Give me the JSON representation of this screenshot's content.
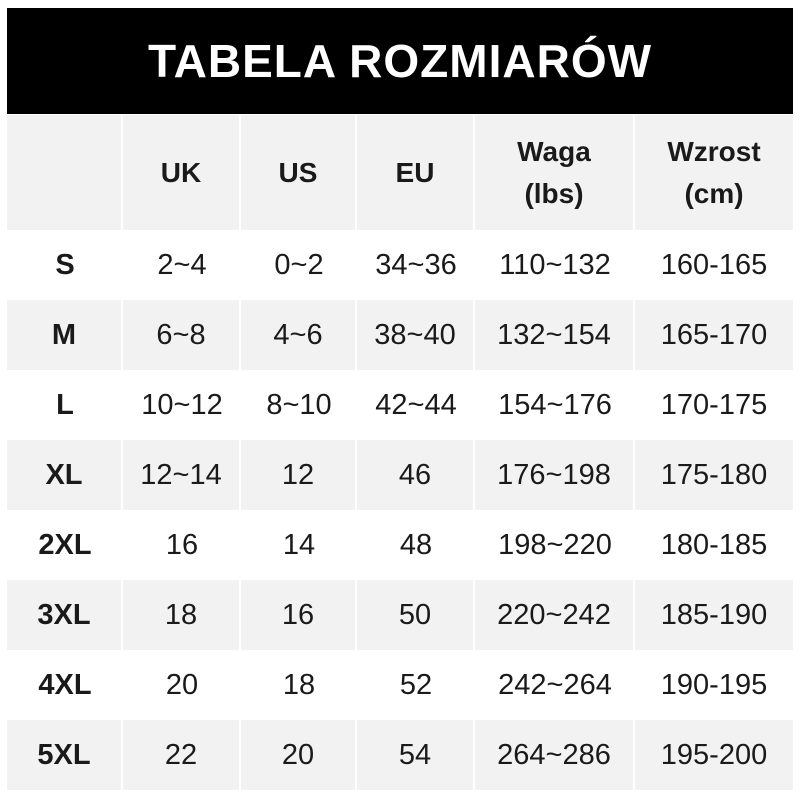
{
  "title": "TABELA ROZMIARÓW",
  "headers": [
    "",
    "UK",
    "US",
    "EU",
    "Waga\n(lbs)",
    "Wzrost\n(cm)"
  ],
  "rows": [
    [
      "S",
      "2~4",
      "0~2",
      "34~36",
      "110~132",
      "160-165"
    ],
    [
      "M",
      "6~8",
      "4~6",
      "38~40",
      "132~154",
      "165-170"
    ],
    [
      "L",
      "10~12",
      "8~10",
      "42~44",
      "154~176",
      "170-175"
    ],
    [
      "XL",
      "12~14",
      "12",
      "46",
      "176~198",
      "175-180"
    ],
    [
      "2XL",
      "16",
      "14",
      "48",
      "198~220",
      "180-185"
    ],
    [
      "3XL",
      "18",
      "16",
      "50",
      "220~242",
      "185-190"
    ],
    [
      "4XL",
      "20",
      "18",
      "52",
      "242~264",
      "190-195"
    ],
    [
      "5XL",
      "22",
      "20",
      "54",
      "264~286",
      "195-200"
    ]
  ],
  "colors": {
    "banner": "#000000",
    "stripe": "#f2f2f2"
  }
}
